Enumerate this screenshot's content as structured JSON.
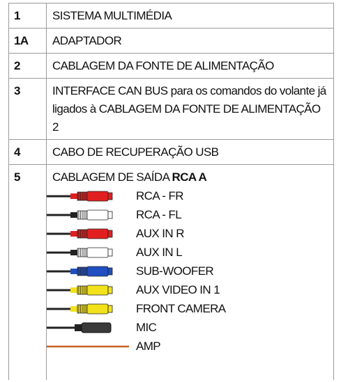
{
  "table": {
    "rows": [
      {
        "number": "1",
        "text": "SISTEMA MULTIMÉDIA"
      },
      {
        "number": "1A",
        "text": "ADAPTADOR"
      },
      {
        "number": "2",
        "text": "CABLAGEM DA FONTE DE ALIMENTAÇÃO"
      },
      {
        "number": "3",
        "text": "INTERFACE CAN BUS para os comandos do volante já ligados à CABLAGEM DA FONTE DE ALIMENTAÇÃO 2"
      },
      {
        "number": "4",
        "text": "CABO DE RECUPERAÇÃO USB"
      },
      {
        "number": "5",
        "text": "CABLAGEM DE SAÍDA",
        "bold": "RCA A",
        "cables": [
          {
            "label": "RCA - FR",
            "kind": "rca",
            "color": "#e02020"
          },
          {
            "label": "RCA - FL",
            "kind": "rca",
            "color": "#ffffff"
          },
          {
            "label": "AUX IN R",
            "kind": "rca",
            "color": "#e02020"
          },
          {
            "label": "AUX IN L",
            "kind": "rca",
            "color": "#ffffff"
          },
          {
            "label": "SUB-WOOFER",
            "kind": "rca",
            "color": "#1f4fc0"
          },
          {
            "label": "AUX VIDEO IN 1",
            "kind": "rca",
            "color": "#f2e21c"
          },
          {
            "label": "FRONT CAMERA",
            "kind": "rca",
            "color": "#f2e21c"
          },
          {
            "label": "MIC",
            "kind": "mic",
            "color": "#3a3a3a"
          },
          {
            "label": "AMP",
            "kind": "amp",
            "color": "#c8621e"
          }
        ]
      }
    ]
  }
}
